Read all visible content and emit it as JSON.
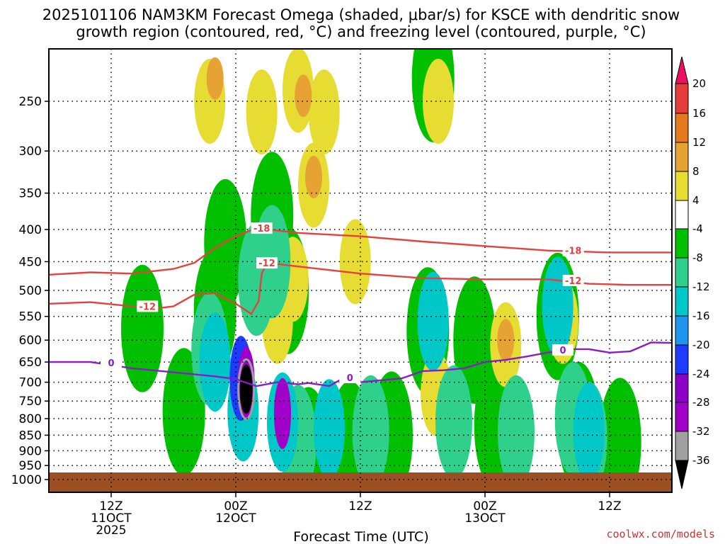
{
  "chart_data": {
    "type": "heatmap",
    "title_line1": "2025101106 NAM3KM Forecast Omega (shaded, μbar/s) for KSCE with dendritic snow",
    "title_line2": "growth region (contoured, red, °C) and freezing level (contoured, purple, °C)",
    "xlabel": "Forecast Time (UTC)",
    "credit": "coolwx.com/models",
    "x_range_hours": [
      0,
      60
    ],
    "y_pressure_range": [
      1000,
      200
    ],
    "y_ticks": [
      250,
      300,
      350,
      400,
      450,
      500,
      550,
      600,
      650,
      700,
      750,
      800,
      850,
      900,
      950,
      1000
    ],
    "x_ticks": [
      {
        "hour": 6,
        "line1": "12Z",
        "line2": "11OCT",
        "line3": "2025"
      },
      {
        "hour": 18,
        "line1": "00Z",
        "line2": "12OCT",
        "line3": ""
      },
      {
        "hour": 30,
        "line1": "12Z",
        "line2": "",
        "line3": ""
      },
      {
        "hour": 42,
        "line1": "00Z",
        "line2": "13OCT",
        "line3": ""
      },
      {
        "hour": 54,
        "line1": "12Z",
        "line2": "",
        "line3": ""
      }
    ],
    "colorbar": {
      "labels": [
        "20",
        "16",
        "12",
        "8",
        "4",
        "-4",
        "-8",
        "-12",
        "-16",
        "-20",
        "-24",
        "-28",
        "-32",
        "-36"
      ],
      "colors": [
        "#ee1060",
        "#e63c3c",
        "#e6781e",
        "#e6a232",
        "#e6dc32",
        "#ffffff",
        "#00c000",
        "#2ed08c",
        "#00c8c8",
        "#1e96f0",
        "#1e3cff",
        "#8c00c8",
        "#a000c8",
        "#a0a0a0",
        "#000000"
      ]
    },
    "series": [
      {
        "name": "-18",
        "color": "#e64040",
        "points": [
          [
            0,
            472
          ],
          [
            4,
            468
          ],
          [
            8,
            470
          ],
          [
            12,
            462
          ],
          [
            14,
            452
          ],
          [
            16,
            428
          ],
          [
            18,
            410
          ],
          [
            20,
            398
          ],
          [
            24,
            405
          ],
          [
            30,
            410
          ],
          [
            36,
            418
          ],
          [
            42,
            425
          ],
          [
            48,
            432
          ],
          [
            54,
            435
          ],
          [
            60,
            435
          ]
        ],
        "labels": [
          [
            20.5,
            398,
            "-18"
          ],
          [
            50.5,
            432,
            "-18"
          ]
        ]
      },
      {
        "name": "-12",
        "color": "#e64040",
        "points": [
          [
            0,
            525
          ],
          [
            4,
            522
          ],
          [
            8,
            530
          ],
          [
            10,
            535
          ],
          [
            12,
            530
          ],
          [
            14,
            508
          ],
          [
            16,
            505
          ],
          [
            18,
            525
          ],
          [
            19.5,
            545
          ],
          [
            20.2,
            520
          ],
          [
            20.5,
            470
          ],
          [
            21,
            452
          ],
          [
            24,
            458
          ],
          [
            30,
            470
          ],
          [
            36,
            478
          ],
          [
            42,
            480
          ],
          [
            48,
            480
          ],
          [
            52,
            488
          ],
          [
            56,
            490
          ],
          [
            60,
            490
          ]
        ],
        "labels": [
          [
            9.5,
            530,
            "-12"
          ],
          [
            21,
            452,
            "-12"
          ],
          [
            50.5,
            482,
            "-12"
          ]
        ]
      },
      {
        "name": "0",
        "color": "#8a1cc4",
        "points": [
          [
            0,
            650
          ],
          [
            4,
            650
          ],
          [
            8,
            665
          ],
          [
            12,
            675
          ],
          [
            14,
            680
          ],
          [
            16,
            685
          ],
          [
            18,
            692
          ],
          [
            20,
            710
          ],
          [
            22,
            700
          ],
          [
            24,
            705
          ],
          [
            25,
            702
          ],
          [
            27,
            710
          ],
          [
            28,
            695
          ],
          [
            29,
            700
          ],
          [
            30,
            700
          ],
          [
            32,
            695
          ],
          [
            34,
            690
          ],
          [
            36,
            672
          ],
          [
            38,
            670
          ],
          [
            40,
            665
          ],
          [
            42,
            650
          ],
          [
            44,
            645
          ],
          [
            46,
            637
          ],
          [
            48,
            628
          ],
          [
            50,
            620
          ],
          [
            52,
            620
          ],
          [
            54,
            628
          ],
          [
            56,
            625
          ],
          [
            58,
            605
          ],
          [
            60,
            606
          ]
        ],
        "labels": [
          [
            6,
            652,
            "0"
          ],
          [
            29,
            688,
            "0"
          ],
          [
            49.5,
            622,
            "0"
          ]
        ]
      }
    ],
    "omega_cells": [
      {
        "h": 19,
        "p": 718,
        "level": -36
      },
      {
        "h": 19,
        "p": 700,
        "level": -28
      },
      {
        "h": 22.5,
        "p": 785,
        "level": -28
      },
      {
        "h": 18.5,
        "p": 690,
        "level": -20
      },
      {
        "h": 18.7,
        "p": 780,
        "level": -12
      },
      {
        "h": 16,
        "p": 650,
        "level": -12
      },
      {
        "h": 22.5,
        "p": 810,
        "level": -12
      },
      {
        "h": 27,
        "p": 830,
        "level": -12
      },
      {
        "h": 37,
        "p": 560,
        "level": -12
      },
      {
        "h": 49,
        "p": 530,
        "level": -12
      },
      {
        "h": 52,
        "p": 840,
        "level": -12
      },
      {
        "h": 15.5,
        "p": 620,
        "level": -8
      },
      {
        "h": 20,
        "p": 480,
        "level": -8
      },
      {
        "h": 21.5,
        "p": 450,
        "level": -8
      },
      {
        "h": 24,
        "p": 870,
        "level": -8
      },
      {
        "h": 31,
        "p": 840,
        "level": -8
      },
      {
        "h": 39,
        "p": 810,
        "level": -8
      },
      {
        "h": 45,
        "p": 840,
        "level": -8
      },
      {
        "h": 50.5,
        "p": 800,
        "level": -8
      },
      {
        "h": 52,
        "p": 860,
        "level": -8
      },
      {
        "h": 9,
        "p": 575,
        "level": -4
      },
      {
        "h": 13,
        "p": 780,
        "level": -4
      },
      {
        "h": 16,
        "p": 540,
        "level": -4
      },
      {
        "h": 17,
        "p": 420,
        "level": -4
      },
      {
        "h": 21.5,
        "p": 380,
        "level": -4
      },
      {
        "h": 23,
        "p": 500,
        "level": -4
      },
      {
        "h": 25,
        "p": 900,
        "level": -4
      },
      {
        "h": 29,
        "p": 880,
        "level": -4
      },
      {
        "h": 33,
        "p": 850,
        "level": -4
      },
      {
        "h": 36.5,
        "p": 580,
        "level": -4
      },
      {
        "h": 41,
        "p": 600,
        "level": -4
      },
      {
        "h": 43,
        "p": 820,
        "level": -4
      },
      {
        "h": 49,
        "p": 550,
        "level": -4
      },
      {
        "h": 51,
        "p": 820,
        "level": -4
      },
      {
        "h": 55,
        "p": 870,
        "level": -4
      },
      {
        "h": 37,
        "p": 230,
        "level": -4
      },
      {
        "h": 15.5,
        "p": 250,
        "level": 4
      },
      {
        "h": 20.5,
        "p": 260,
        "level": 4
      },
      {
        "h": 24,
        "p": 240,
        "level": 4
      },
      {
        "h": 26.5,
        "p": 260,
        "level": 4
      },
      {
        "h": 25.5,
        "p": 340,
        "level": 4
      },
      {
        "h": 22,
        "p": 560,
        "level": 4
      },
      {
        "h": 23.5,
        "p": 480,
        "level": 4
      },
      {
        "h": 29.5,
        "p": 450,
        "level": 4
      },
      {
        "h": 37.5,
        "p": 250,
        "level": 4
      },
      {
        "h": 37.3,
        "p": 730,
        "level": 4
      },
      {
        "h": 44,
        "p": 610,
        "level": 4
      },
      {
        "h": 49.5,
        "p": 560,
        "level": 4
      },
      {
        "h": 16,
        "p": 230,
        "level": 8
      },
      {
        "h": 24.5,
        "p": 245,
        "level": 8
      },
      {
        "h": 25.5,
        "p": 330,
        "level": 8
      },
      {
        "h": 44,
        "p": 600,
        "level": 8
      }
    ]
  }
}
